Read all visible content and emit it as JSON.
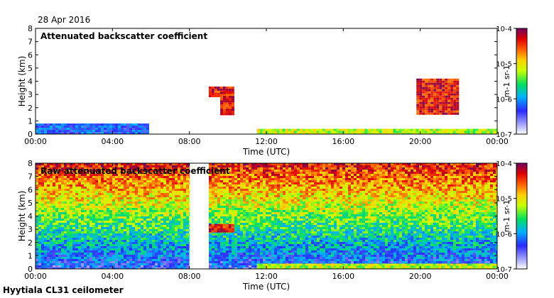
{
  "date": "28 Apr 2016",
  "footer": "Hyytiala CL31 ceilometer",
  "chart_data": [
    {
      "type": "heatmap",
      "title": "Attenuated backscatter coefficient",
      "xlabel": "Time (UTC)",
      "ylabel": "Height (km)",
      "xlim": [
        0,
        24
      ],
      "ylim": [
        0,
        8
      ],
      "xticks": [
        0,
        4,
        8,
        12,
        16,
        20,
        24
      ],
      "xtick_labels": [
        "00:00",
        "04:00",
        "08:00",
        "12:00",
        "16:00",
        "20:00",
        "00:00"
      ],
      "yticks": [
        0,
        1,
        2,
        3,
        4,
        5,
        6,
        7,
        8
      ],
      "ytick_labels": [
        "0",
        "1",
        "2",
        "3",
        "4",
        "5",
        "6",
        "7",
        "8"
      ],
      "colorbar": {
        "scale": "log",
        "range": [
          1e-07,
          0.0001
        ],
        "tick_labels": [
          "10-7",
          "10-6",
          "10-5",
          "10-4"
        ],
        "label": "m-1 sr-1"
      },
      "data_gaps_hours": [
        [
          8.0,
          9.0
        ]
      ],
      "features": [
        {
          "name": "boundary layer aerosol",
          "hours": [
            0,
            5.8
          ],
          "height_km": [
            0,
            0.8
          ],
          "level": "low"
        },
        {
          "name": "cloud layer",
          "hours": [
            9.0,
            10.2
          ],
          "height_km": [
            2.9,
            3.6
          ],
          "level": "high"
        },
        {
          "name": "precipitation fall streak",
          "hours": [
            9.6,
            10.3
          ],
          "height_km": [
            1.5,
            3.2
          ],
          "level": "high"
        },
        {
          "name": "cloud patch",
          "hours": [
            19.8,
            21.9
          ],
          "height_km": [
            1.5,
            4.2
          ],
          "level": "high"
        },
        {
          "name": "near-surface layer",
          "hours": [
            11.5,
            24
          ],
          "height_km": [
            0,
            0.4
          ],
          "level": "medium"
        }
      ]
    },
    {
      "type": "heatmap",
      "title": "Raw attenuated backscatter coefficient",
      "xlabel": "Time (UTC)",
      "ylabel": "Height (km)",
      "xlim": [
        0,
        24
      ],
      "ylim": [
        0,
        8
      ],
      "xticks": [
        0,
        4,
        8,
        12,
        16,
        20,
        24
      ],
      "xtick_labels": [
        "00:00",
        "04:00",
        "08:00",
        "12:00",
        "16:00",
        "20:00",
        "00:00"
      ],
      "yticks": [
        0,
        1,
        2,
        3,
        4,
        5,
        6,
        7,
        8
      ],
      "ytick_labels": [
        "0",
        "1",
        "2",
        "3",
        "4",
        "5",
        "6",
        "7",
        "8"
      ],
      "colorbar": {
        "scale": "log",
        "range": [
          1e-07,
          0.0001
        ],
        "tick_labels": [
          "10-7",
          "10-6",
          "10-5",
          "10-4"
        ],
        "label": "m-1 sr-1"
      },
      "data_gaps_hours": [
        [
          8.0,
          9.0
        ]
      ],
      "noise_gradient": "increasing with height",
      "features": [
        {
          "name": "cloud layer",
          "hours": [
            9.0,
            10.2
          ],
          "height_km": [
            2.8,
            3.4
          ],
          "level": "high"
        },
        {
          "name": "near-surface layer",
          "hours": [
            11.5,
            24
          ],
          "height_km": [
            0,
            0.4
          ],
          "level": "medium"
        }
      ]
    }
  ]
}
